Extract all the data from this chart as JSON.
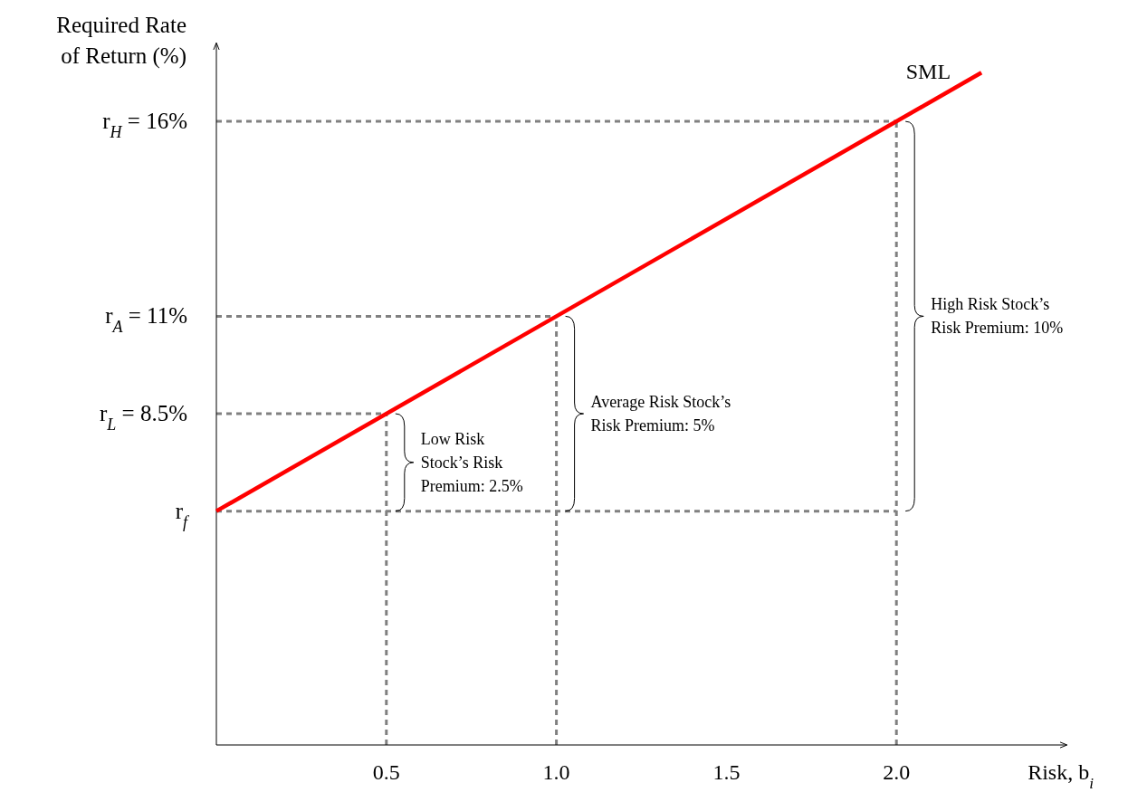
{
  "chart_data": {
    "type": "line",
    "xlabel": "Risk, b$_{i}$",
    "ylabel": "Required Rate\nof Return (%)",
    "xlim": [
      0,
      2.5
    ],
    "ylim": [
      0,
      18
    ],
    "xticks": [
      0.5,
      {
        "value": 1,
        "label": "1.0"
      },
      1.5,
      {
        "value": 2,
        "label": "2.0"
      }
    ],
    "yticks": [
      {
        "value": 6,
        "label": "r$_{f}$"
      },
      {
        "value": 8.5,
        "label": "r$_{L}$ = 8.5%"
      },
      {
        "value": 11,
        "label": "r$_{A}$ = 11%"
      },
      {
        "value": 16,
        "label": "r$_{H}$ = 16%"
      }
    ],
    "series": [
      {
        "name": "SML",
        "color": "#ff0000",
        "x": [
          0,
          2.25
        ],
        "values": [
          6,
          17.25
        ]
      }
    ],
    "ref_lines": [
      {
        "axis": "y",
        "value": 6,
        "color": "#808080",
        "line_style": "dashed"
      },
      {
        "axis": "y",
        "value": 8.5,
        "color": "#808080",
        "line_style": "dashed"
      },
      {
        "axis": "y",
        "value": 11,
        "color": "#808080",
        "line_style": "dashed"
      },
      {
        "axis": "y",
        "value": 16,
        "color": "#808080",
        "line_style": "dashed"
      },
      {
        "axis": "x",
        "value": 0.5,
        "color": "#808080",
        "line_style": "dashed"
      },
      {
        "axis": "x",
        "value": 1,
        "color": "#808080",
        "line_style": "dashed"
      },
      {
        "axis": "x",
        "value": 2,
        "color": "#808080",
        "line_style": "dashed"
      }
    ],
    "annotations": [
      {
        "text": "Low Risk\nStock’s Risk\nPremium: 2.5%",
        "x": 0.5,
        "y": 7.25
      },
      {
        "text": "Average Risk Stock’s\nRisk Premium: 5%",
        "x": 1,
        "y": 8.5
      },
      {
        "text": "High Risk Stock’s\nRisk Premium: 10%",
        "x": 2,
        "y": 11
      }
    ]
  }
}
